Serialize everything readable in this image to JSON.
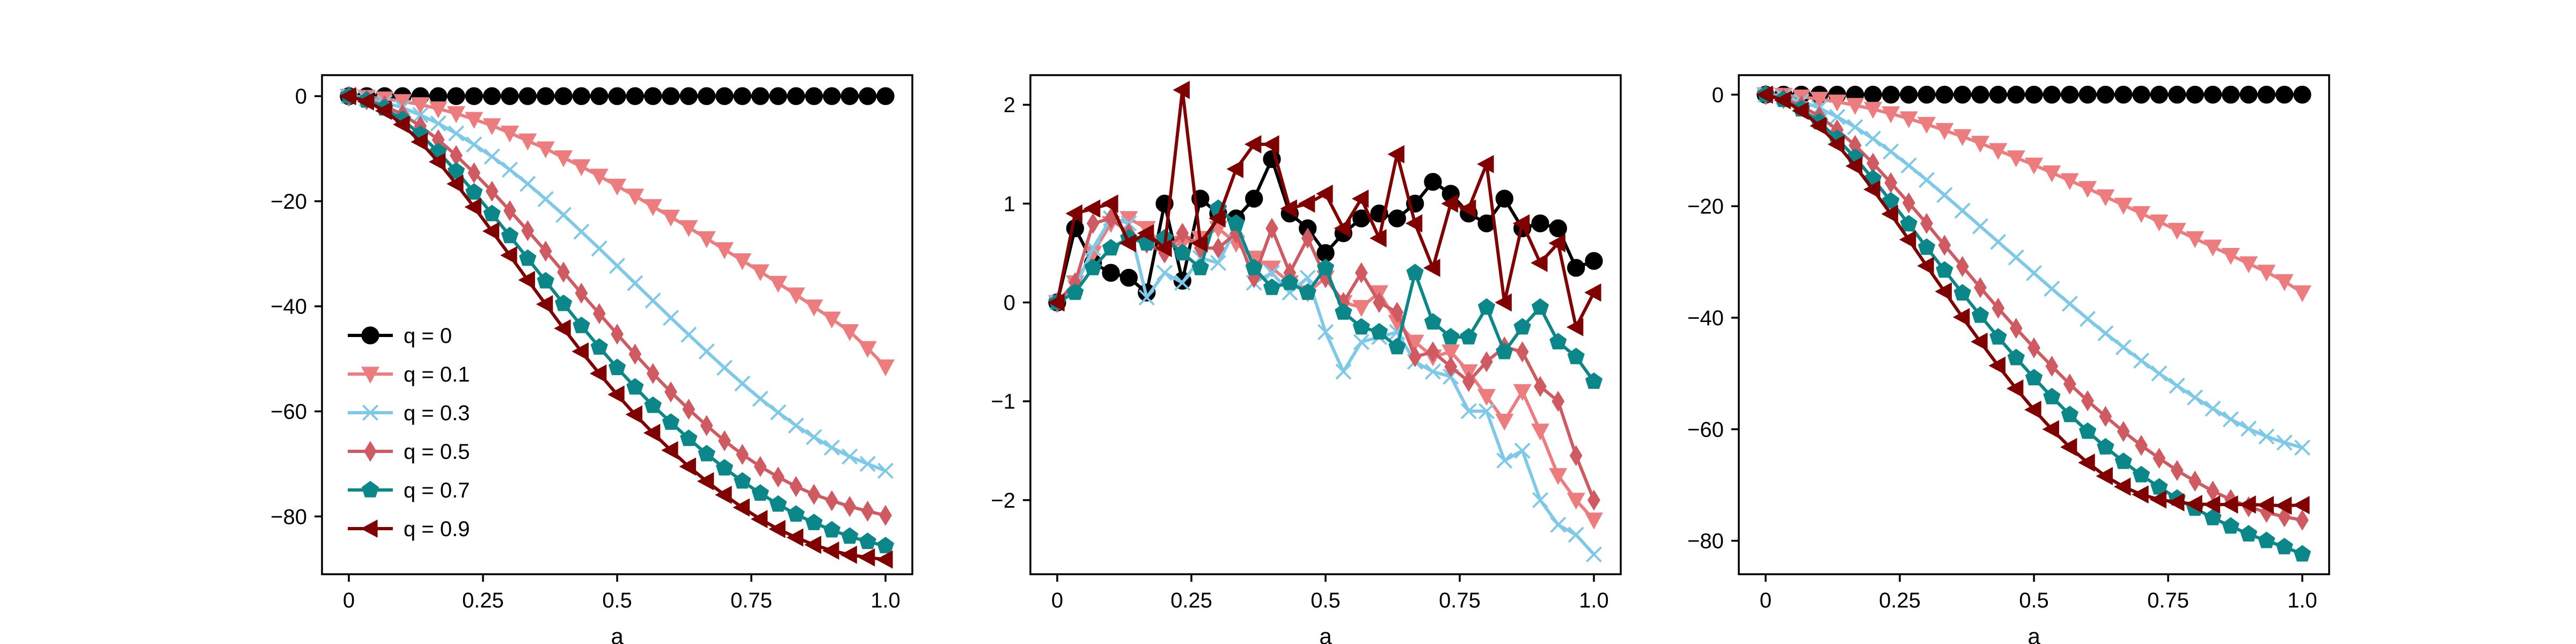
{
  "chart_data": [
    {
      "type": "line",
      "xlabel": "a",
      "ylabel": "",
      "xlim": [
        -0.05,
        1.05
      ],
      "ylim": [
        -91,
        4
      ],
      "xticks": [
        0,
        0.25,
        0.5,
        0.75,
        1.0
      ],
      "xtick_labels": [
        "0",
        "0.25",
        "0.5",
        "0.75",
        "1.0"
      ],
      "yticks": [
        0,
        -20,
        -40,
        -60,
        -80
      ],
      "ytick_labels": [
        "0",
        "−20",
        "−40",
        "−60",
        "−80"
      ],
      "legend": "lower-left",
      "x": [
        0,
        0.0333,
        0.0667,
        0.1,
        0.1333,
        0.1667,
        0.2,
        0.2333,
        0.2667,
        0.3,
        0.3333,
        0.3667,
        0.4,
        0.4333,
        0.4667,
        0.5,
        0.5333,
        0.5667,
        0.6,
        0.6333,
        0.6667,
        0.7,
        0.7333,
        0.7667,
        0.8,
        0.8333,
        0.8667,
        0.9,
        0.9333,
        0.9667,
        1.0
      ],
      "series": [
        {
          "name": "q = 0",
          "values": [
            0,
            0,
            0,
            0,
            0,
            0,
            0,
            0,
            0,
            0,
            0,
            0,
            0,
            0,
            0,
            0,
            0,
            0,
            0,
            0,
            0,
            0,
            0,
            0,
            0,
            0,
            0,
            0,
            0,
            0,
            0
          ]
        },
        {
          "name": "q = 0.1",
          "values": [
            0,
            -0.2,
            -0.5,
            -1,
            -1.6,
            -2.4,
            -3.3,
            -4.4,
            -5.6,
            -7,
            -8.5,
            -10,
            -11.7,
            -13.4,
            -15.2,
            -17.1,
            -19,
            -21,
            -23,
            -25,
            -27.1,
            -29.2,
            -31.3,
            -33.4,
            -35.6,
            -37.8,
            -40.1,
            -42.4,
            -44.8,
            -48,
            -51.5
          ]
        },
        {
          "name": "q = 0.3",
          "values": [
            0,
            -0.5,
            -1.2,
            -2.2,
            -3.6,
            -5.2,
            -7.1,
            -9.2,
            -11.5,
            -14,
            -16.7,
            -19.6,
            -22.6,
            -25.8,
            -29,
            -32.3,
            -35.6,
            -38.9,
            -42.2,
            -45.4,
            -48.6,
            -51.7,
            -54.7,
            -57.6,
            -60.2,
            -62.7,
            -64.9,
            -66.9,
            -68.6,
            -70,
            -71.3
          ]
        },
        {
          "name": "q = 0.5",
          "values": [
            0,
            -0.7,
            -1.8,
            -3.5,
            -5.7,
            -8.3,
            -11.3,
            -14.6,
            -18.1,
            -21.8,
            -25.6,
            -29.5,
            -33.5,
            -37.5,
            -41.4,
            -45.3,
            -49.1,
            -52.8,
            -56.3,
            -59.6,
            -62.7,
            -65.6,
            -68.2,
            -70.5,
            -72.5,
            -74.3,
            -75.8,
            -77,
            -78.1,
            -79,
            -79.8
          ]
        },
        {
          "name": "q = 0.7",
          "values": [
            0,
            -0.8,
            -2.3,
            -4.5,
            -7.3,
            -10.6,
            -14.3,
            -18.3,
            -22.4,
            -26.6,
            -30.9,
            -35.2,
            -39.5,
            -43.7,
            -47.8,
            -51.7,
            -55.4,
            -58.9,
            -62.1,
            -65.2,
            -68.1,
            -70.8,
            -73.3,
            -75.6,
            -77.7,
            -79.6,
            -81.2,
            -82.6,
            -83.8,
            -84.8,
            -85.6
          ]
        },
        {
          "name": "q = 0.9",
          "values": [
            0,
            -1,
            -2.8,
            -5.4,
            -8.7,
            -12.5,
            -16.7,
            -21.1,
            -25.7,
            -30.3,
            -35,
            -39.6,
            -44.2,
            -48.6,
            -52.8,
            -56.8,
            -60.6,
            -64.1,
            -67.4,
            -70.5,
            -73.3,
            -75.9,
            -78.3,
            -80.5,
            -82.4,
            -84,
            -85.4,
            -86.5,
            -87.3,
            -87.8,
            -88.2
          ]
        }
      ]
    },
    {
      "type": "line",
      "xlabel": "a",
      "ylabel": "",
      "xlim": [
        -0.05,
        1.05
      ],
      "ylim": [
        -2.75,
        2.3
      ],
      "xticks": [
        0,
        0.25,
        0.5,
        0.75,
        1.0
      ],
      "xtick_labels": [
        "0",
        "0.25",
        "0.5",
        "0.75",
        "1.0"
      ],
      "yticks": [
        2,
        1,
        0,
        -1,
        -2
      ],
      "ytick_labels": [
        "2",
        "1",
        "0",
        "−1",
        "−2"
      ],
      "x": [
        0,
        0.0333,
        0.0667,
        0.1,
        0.1333,
        0.1667,
        0.2,
        0.2333,
        0.2667,
        0.3,
        0.3333,
        0.3667,
        0.4,
        0.4333,
        0.4667,
        0.5,
        0.5333,
        0.5667,
        0.6,
        0.6333,
        0.6667,
        0.7,
        0.7333,
        0.7667,
        0.8,
        0.8333,
        0.8667,
        0.9,
        0.9333,
        0.9667,
        1.0
      ],
      "series": [
        {
          "name": "q = 0",
          "values": [
            0,
            0.75,
            0.4,
            0.3,
            0.25,
            0.1,
            1.0,
            0.22,
            1.05,
            0.9,
            0.85,
            1.05,
            1.45,
            0.9,
            0.75,
            0.5,
            0.7,
            0.85,
            0.9,
            0.85,
            1.0,
            1.22,
            1.1,
            0.9,
            0.8,
            1.05,
            0.75,
            0.8,
            0.75,
            0.35,
            0.42
          ]
        },
        {
          "name": "q = 0.1",
          "values": [
            0,
            0.2,
            0.5,
            0.8,
            0.85,
            0.75,
            0.55,
            0.6,
            0.65,
            0.75,
            0.6,
            0.45,
            0.35,
            0.2,
            0.1,
            0.25,
            0.0,
            -0.05,
            0.1,
            -0.2,
            -0.4,
            -0.55,
            -0.5,
            -0.7,
            -0.95,
            -1.2,
            -0.9,
            -1.3,
            -1.75,
            -2.0,
            -2.2
          ]
        },
        {
          "name": "q = 0.3",
          "values": [
            0,
            0.15,
            0.55,
            0.85,
            0.8,
            0.05,
            0.3,
            0.2,
            0.45,
            0.4,
            0.75,
            0.2,
            0.3,
            0.1,
            0.25,
            -0.3,
            -0.7,
            -0.4,
            -0.35,
            -0.3,
            -0.6,
            -0.7,
            -0.75,
            -1.1,
            -1.1,
            -1.6,
            -1.5,
            -2.0,
            -2.25,
            -2.35,
            -2.55
          ]
        },
        {
          "name": "q = 0.5",
          "values": [
            0,
            0.2,
            0.8,
            0.85,
            0.7,
            0.6,
            0.5,
            0.7,
            0.55,
            0.55,
            0.7,
            0.25,
            0.75,
            0.3,
            0.65,
            0.25,
            0.0,
            0.3,
            0.0,
            -0.1,
            -0.55,
            -0.5,
            -0.65,
            -0.8,
            -0.6,
            -0.45,
            -0.5,
            -0.85,
            -1.0,
            -1.55,
            -2.0
          ]
        },
        {
          "name": "q = 0.7",
          "values": [
            0,
            0.1,
            0.35,
            0.55,
            0.65,
            0.6,
            0.65,
            0.5,
            0.35,
            0.95,
            0.8,
            0.35,
            0.15,
            0.2,
            0.1,
            0.35,
            -0.1,
            -0.25,
            -0.3,
            -0.45,
            0.3,
            -0.2,
            -0.35,
            -0.35,
            -0.05,
            -0.5,
            -0.25,
            -0.05,
            -0.4,
            -0.55,
            -0.8
          ]
        },
        {
          "name": "q = 0.9",
          "values": [
            0,
            0.9,
            0.95,
            1.0,
            0.6,
            0.7,
            0.55,
            2.15,
            0.6,
            0.85,
            1.35,
            1.6,
            1.6,
            0.95,
            1.0,
            1.1,
            0.75,
            1.05,
            0.65,
            1.5,
            0.8,
            0.35,
            1.0,
            0.95,
            1.4,
            0.0,
            0.8,
            0.4,
            0.6,
            -0.25,
            0.1
          ]
        }
      ]
    },
    {
      "type": "line",
      "xlabel": "a",
      "ylabel": "",
      "xlim": [
        -0.05,
        1.05
      ],
      "ylim": [
        -86,
        3.5
      ],
      "xticks": [
        0,
        0.25,
        0.5,
        0.75,
        1.0
      ],
      "xtick_labels": [
        "0",
        "0.25",
        "0.5",
        "0.75",
        "1.0"
      ],
      "yticks": [
        0,
        -20,
        -40,
        -60,
        -80
      ],
      "ytick_labels": [
        "0",
        "−20",
        "−40",
        "−60",
        "−80"
      ],
      "x": [
        0,
        0.0333,
        0.0667,
        0.1,
        0.1333,
        0.1667,
        0.2,
        0.2333,
        0.2667,
        0.3,
        0.3333,
        0.3667,
        0.4,
        0.4333,
        0.4667,
        0.5,
        0.5333,
        0.5667,
        0.6,
        0.6333,
        0.6667,
        0.7,
        0.7333,
        0.7667,
        0.8,
        0.8333,
        0.8667,
        0.9,
        0.9333,
        0.9667,
        1.0
      ],
      "series": [
        {
          "name": "q = 0",
          "values": [
            0,
            0,
            0,
            0,
            0,
            0,
            0,
            0,
            0,
            0,
            0,
            0,
            0,
            0,
            0,
            0,
            0,
            0,
            0,
            0,
            0,
            0,
            0,
            0,
            0,
            0,
            0,
            0,
            0,
            0,
            0
          ]
        },
        {
          "name": "q = 0.1",
          "values": [
            0,
            -0.1,
            -0.4,
            -0.8,
            -1.3,
            -1.9,
            -2.6,
            -3.4,
            -4.3,
            -5.3,
            -6.4,
            -7.5,
            -8.7,
            -10,
            -11.3,
            -12.6,
            -14,
            -15.4,
            -16.8,
            -18.3,
            -19.8,
            -21.3,
            -22.8,
            -24.3,
            -25.8,
            -27.3,
            -28.8,
            -30.3,
            -31.8,
            -33.5,
            -35.5
          ]
        },
        {
          "name": "q = 0.3",
          "values": [
            0,
            -0.4,
            -1.2,
            -2.4,
            -4,
            -5.8,
            -7.9,
            -10.2,
            -12.7,
            -15.3,
            -18,
            -20.8,
            -23.6,
            -26.4,
            -29.2,
            -32,
            -34.8,
            -37.5,
            -40.2,
            -42.8,
            -45.3,
            -47.7,
            -50,
            -52.2,
            -54.3,
            -56.3,
            -58.2,
            -59.9,
            -61.3,
            -62.4,
            -63.3
          ]
        },
        {
          "name": "q = 0.5",
          "values": [
            0,
            -0.7,
            -2,
            -3.9,
            -6.3,
            -9.1,
            -12.3,
            -15.8,
            -19.4,
            -23.1,
            -27,
            -30.8,
            -34.6,
            -38.3,
            -41.9,
            -45.4,
            -48.7,
            -51.9,
            -54.9,
            -57.7,
            -60.4,
            -62.9,
            -65.2,
            -67.4,
            -69.3,
            -71.1,
            -72.6,
            -73.9,
            -74.9,
            -75.7,
            -76.3
          ]
        },
        {
          "name": "q = 0.7",
          "values": [
            0,
            -0.9,
            -2.6,
            -4.9,
            -7.9,
            -11.3,
            -15.1,
            -19.1,
            -23.2,
            -27.4,
            -31.5,
            -35.6,
            -39.6,
            -43.5,
            -47.2,
            -50.8,
            -54.2,
            -57.4,
            -60.4,
            -63.2,
            -65.8,
            -68.2,
            -70.4,
            -72.4,
            -74.2,
            -75.9,
            -77.4,
            -78.8,
            -80,
            -81.1,
            -82.4
          ]
        },
        {
          "name": "q = 0.9",
          "values": [
            0,
            -1,
            -2.9,
            -5.6,
            -8.9,
            -12.8,
            -17,
            -21.4,
            -26,
            -30.7,
            -35.3,
            -39.9,
            -44.3,
            -48.6,
            -52.7,
            -56.5,
            -60,
            -63.2,
            -66,
            -68.4,
            -70.3,
            -71.7,
            -72.6,
            -73.1,
            -73.4,
            -73.5,
            -73.5,
            -73.5,
            -73.6,
            -73.7,
            -73.6
          ]
        }
      ]
    }
  ],
  "series_styles": [
    {
      "color": "#000000",
      "marker": "circle"
    },
    {
      "color": "#ec7c7d",
      "marker": "triangle-down"
    },
    {
      "color": "#7ec8e8",
      "marker": "x"
    },
    {
      "color": "#cf5a61",
      "marker": "diamond"
    },
    {
      "color": "#0c8789",
      "marker": "pentagon"
    },
    {
      "color": "#800000",
      "marker": "triangle-left"
    }
  ]
}
